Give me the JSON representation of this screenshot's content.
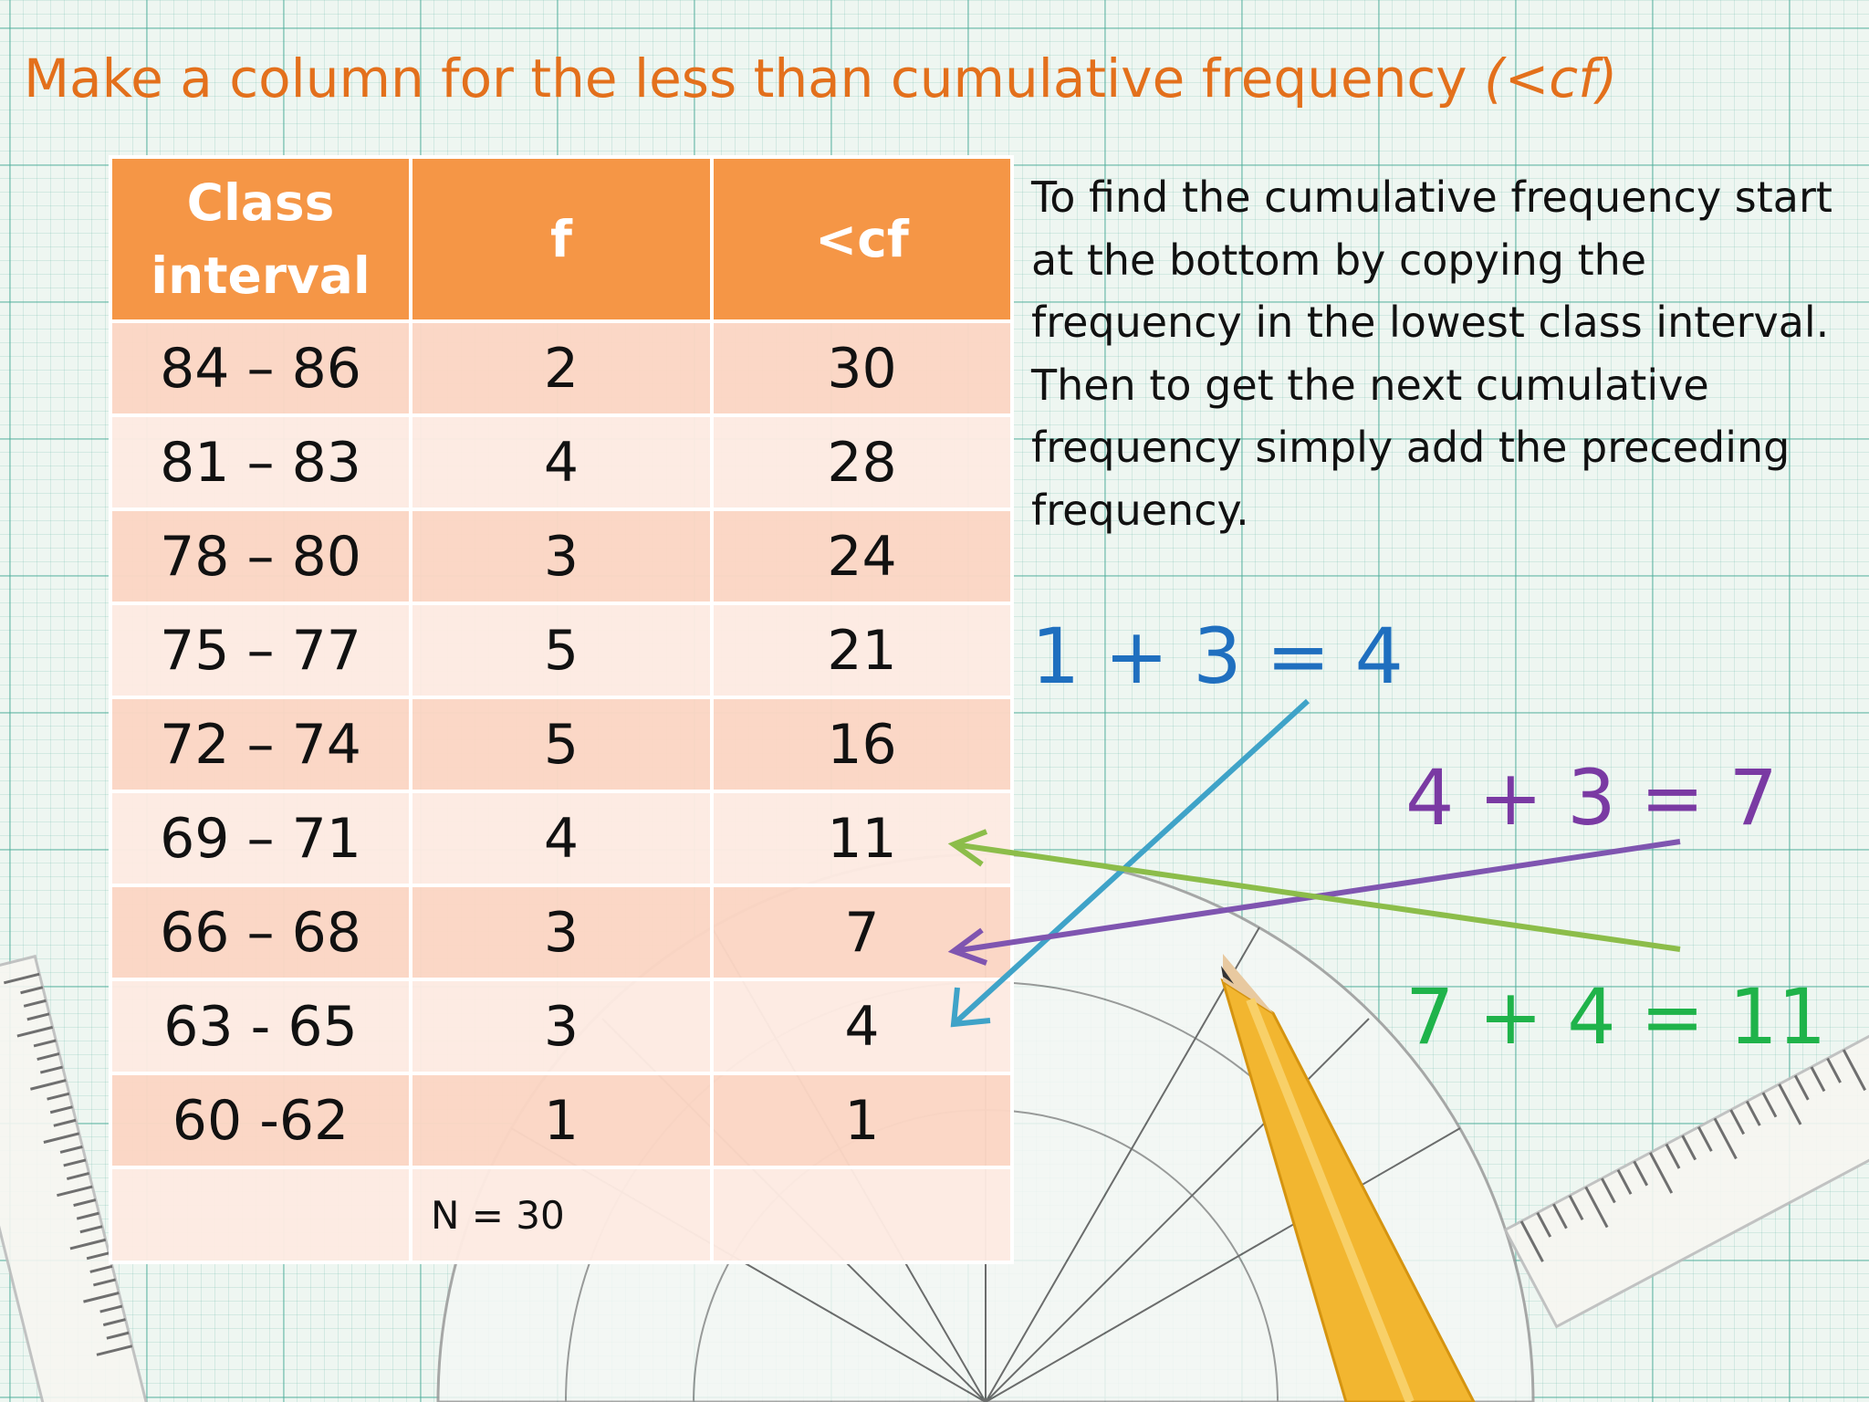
{
  "title": {
    "text": "Make a column for the less than cumulative frequency ",
    "italic": "(<cf)"
  },
  "table": {
    "headers": [
      "Class interval",
      "f",
      "<cf"
    ],
    "rows": [
      {
        "interval": "84 – 86",
        "f": "2",
        "cf": "30"
      },
      {
        "interval": "81 – 83",
        "f": "4",
        "cf": "28"
      },
      {
        "interval": "78 – 80",
        "f": "3",
        "cf": "24"
      },
      {
        "interval": "75 – 77",
        "f": "5",
        "cf": "21"
      },
      {
        "interval": "72 – 74",
        "f": "5",
        "cf": "16"
      },
      {
        "interval": "69 – 71",
        "f": "4",
        "cf": "11"
      },
      {
        "interval": "66 – 68",
        "f": "3",
        "cf": "7"
      },
      {
        "interval": "63 - 65",
        "f": "3",
        "cf": "4"
      },
      {
        "interval": "60 -62",
        "f": "1",
        "cf": "1"
      }
    ],
    "total": "N = 30"
  },
  "explanation": "To find the cumulative frequency start at the bottom by copying the frequency in the lowest class interval. Then to get the next cumulative frequency simply add the preceding frequency.",
  "equations": [
    {
      "text": "1 + 3 = 4",
      "color": "#1f6fbf"
    },
    {
      "text": "4 + 3 = 7",
      "color": "#7a3aa3"
    },
    {
      "text": "7 + 4 = 11",
      "color": "#1fb34a"
    }
  ],
  "arrow_colors": {
    "blue": "#3fa3c8",
    "purple": "#7f55b0",
    "green": "#8cbd4a"
  }
}
